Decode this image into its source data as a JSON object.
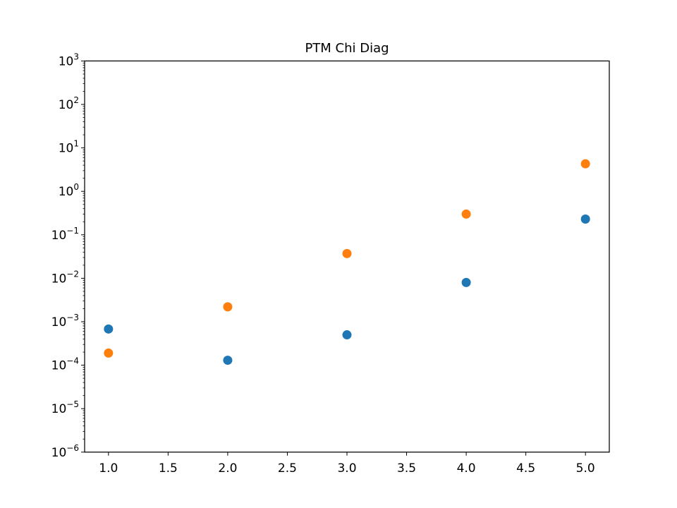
{
  "chart_data": {
    "type": "scatter",
    "title": "PTM Chi Diag",
    "xlabel": "",
    "ylabel": "",
    "xlim": [
      0.8,
      5.2
    ],
    "ylim": [
      1e-06,
      1000
    ],
    "yscale": "log",
    "grid": false,
    "legend": "none",
    "x_ticks": [
      "1.0",
      "1.5",
      "2.0",
      "2.5",
      "3.0",
      "3.5",
      "4.0",
      "4.5",
      "5.0"
    ],
    "x_tick_values": [
      1.0,
      1.5,
      2.0,
      2.5,
      3.0,
      3.5,
      4.0,
      4.5,
      5.0
    ],
    "y_ticks": [
      {
        "base": "10",
        "exp": "−6",
        "value": 1e-06
      },
      {
        "base": "10",
        "exp": "−5",
        "value": 1e-05
      },
      {
        "base": "10",
        "exp": "−4",
        "value": 0.0001
      },
      {
        "base": "10",
        "exp": "−3",
        "value": 0.001
      },
      {
        "base": "10",
        "exp": "−2",
        "value": 0.01
      },
      {
        "base": "10",
        "exp": "−1",
        "value": 0.1
      },
      {
        "base": "10",
        "exp": "0",
        "value": 1
      },
      {
        "base": "10",
        "exp": "1",
        "value": 10
      },
      {
        "base": "10",
        "exp": "2",
        "value": 100
      },
      {
        "base": "10",
        "exp": "3",
        "value": 1000
      }
    ],
    "x": [
      1,
      2,
      3,
      4,
      5
    ],
    "series": [
      {
        "color": "#1f77b4",
        "values": [
          0.00068,
          0.00013,
          0.0005,
          0.008,
          0.23
        ]
      },
      {
        "color": "#ff7f0e",
        "values": [
          0.00019,
          0.0022,
          0.037,
          0.3,
          4.3
        ]
      }
    ]
  }
}
